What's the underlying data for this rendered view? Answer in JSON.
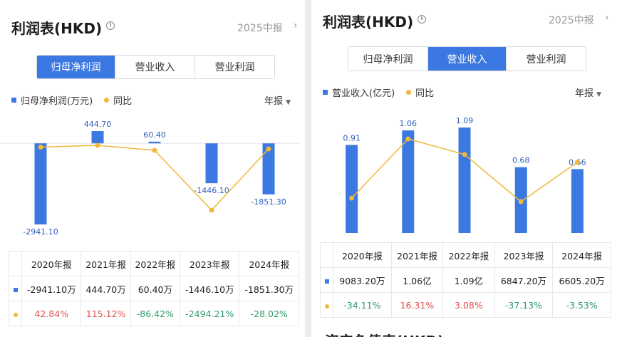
{
  "panels": [
    {
      "title": "利润表(HKD)",
      "period": "2025中报",
      "tabs": [
        "归母净利润",
        "营业收入",
        "营业利润"
      ],
      "active_tab": 0,
      "legend_bar": "归母净利润(万元)",
      "legend_line": "同比",
      "annual": "年报",
      "table": {
        "headers": [
          "2020年报",
          "2021年报",
          "2022年报",
          "2023年报",
          "2024年报"
        ],
        "values": [
          "-2941.10万",
          "444.70万",
          "60.40万",
          "-1446.10万",
          "-1851.30万"
        ],
        "yoy": [
          "42.84%",
          "115.12%",
          "-86.42%",
          "-2494.21%",
          "-28.02%"
        ]
      },
      "chart_data": {
        "type": "bar",
        "categories": [
          "2020年报",
          "2021年报",
          "2022年报",
          "2023年报",
          "2024年报"
        ],
        "series": [
          {
            "name": "归母净利润(万元)",
            "values": [
              -2941.1,
              444.7,
              60.4,
              -1446.1,
              -1851.3
            ],
            "labels": [
              "-2941.10",
              "444.70",
              "60.40",
              "-1446.10",
              "-1851.30"
            ]
          },
          {
            "name": "同比",
            "type": "line",
            "values": [
              42.84,
              115.12,
              -86.42,
              -2494.21,
              -28.02
            ]
          }
        ]
      }
    },
    {
      "title": "利润表(HKD)",
      "period": "2025中报",
      "tabs": [
        "归母净利润",
        "营业收入",
        "营业利润"
      ],
      "active_tab": 1,
      "legend_bar": "营业收入(亿元)",
      "legend_line": "同比",
      "annual": "年报",
      "table": {
        "headers": [
          "2020年报",
          "2021年报",
          "2022年报",
          "2023年报",
          "2024年报"
        ],
        "values": [
          "9083.20万",
          "1.06亿",
          "1.09亿",
          "6847.20万",
          "6605.20万"
        ],
        "yoy": [
          "-34.11%",
          "16.31%",
          "3.08%",
          "-37.13%",
          "-3.53%"
        ]
      },
      "chart_data": {
        "type": "bar",
        "categories": [
          "2020年报",
          "2021年报",
          "2022年报",
          "2023年报",
          "2024年报"
        ],
        "series": [
          {
            "name": "营业收入(亿元)",
            "values": [
              0.91,
              1.06,
              1.09,
              0.68,
              0.66
            ],
            "labels": [
              "0.91",
              "1.06",
              "1.09",
              "0.68",
              "0.66"
            ]
          },
          {
            "name": "同比",
            "type": "line",
            "values": [
              -34.11,
              16.31,
              3.08,
              -37.13,
              -3.53
            ]
          }
        ]
      }
    }
  ],
  "colors": {
    "bar": "#3c78e1",
    "line": "#f0b93a",
    "positive": "#e0504e",
    "negative": "#2e9b6a"
  },
  "cutoff_text": "资产负债表(HKD)"
}
